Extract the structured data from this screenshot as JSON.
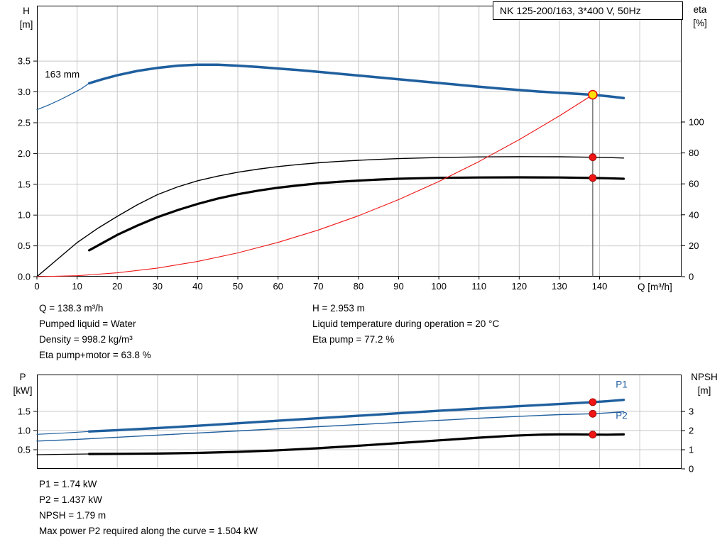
{
  "title": "NK 125-200/163, 3*400 V, 50Hz",
  "axes": {
    "top_left_unit": [
      "H",
      "[m]"
    ],
    "top_right_unit": [
      "eta",
      "[%]"
    ],
    "x_unit": "Q [m³/h]",
    "bottom_left_unit": [
      "P",
      "[kW]"
    ],
    "bottom_right_unit": [
      "NPSH",
      "[m]"
    ]
  },
  "info_top_left": [
    "Q = 138.3 m³/h",
    "Pumped liquid = Water",
    "Density = 998.2 kg/m³",
    "Eta pump+motor = 63.8 %"
  ],
  "info_top_right": [
    "H = 2.953 m",
    "Liquid temperature during operation = 20 °C",
    "Eta pump = 77.2 %"
  ],
  "info_bottom": [
    "P1 = 1.74 kW",
    "P2 = 1.437 kW",
    "NPSH = 1.79 m",
    "Max power P2 required along the curve = 1.504 kW"
  ],
  "colors": {
    "curve_blue": "#1f5f9e",
    "curve_black": "#000000",
    "curve_red": "#ee1515",
    "grid": "#c8c8c8",
    "duty_fill": "#ffe10a",
    "duty_ring": "#e01010",
    "dot": "#ee1515",
    "dot_ring": "#990000"
  },
  "chart_data": [
    {
      "type": "line",
      "title": "Pump curve: head and efficiency vs flow",
      "xlabel": "Q [m³/h]",
      "ylabel": "H [m]",
      "y2label": "eta [%]",
      "xlim": [
        0,
        160.4
      ],
      "ylim": [
        0,
        4.4
      ],
      "y2lim": [
        0,
        175.2
      ],
      "grid": true,
      "xticks": [
        0,
        10,
        20,
        30,
        40,
        50,
        60,
        70,
        80,
        90,
        100,
        110,
        120,
        130,
        140,
        150
      ],
      "xtick_labels": [
        "0",
        "10",
        "20",
        "30",
        "40",
        "50",
        "60",
        "70",
        "80",
        "90",
        "100",
        "110",
        "120",
        "130",
        "140",
        ""
      ],
      "yticks": [
        0,
        0.5,
        1,
        1.5,
        2,
        2.5,
        3,
        3.5
      ],
      "ytick_labels": [
        "0.0",
        "0.5",
        "1.0",
        "1.5",
        "2.0",
        "2.5",
        "3.0",
        "3.5"
      ],
      "y2ticks": [
        0,
        20,
        40,
        60,
        80,
        100
      ],
      "series": [
        {
          "name": "head-extension",
          "axis": "y",
          "color": "#1f5f9e",
          "width": 1.2,
          "points": [
            [
              0,
              2.71
            ],
            [
              3,
              2.79
            ],
            [
              6,
              2.88
            ],
            [
              9,
              2.98
            ],
            [
              11,
              3.05
            ],
            [
              13,
              3.14
            ]
          ]
        },
        {
          "name": "head-163mm",
          "axis": "y",
          "color": "#1f5f9e",
          "width": 3.5,
          "points": [
            [
              13,
              3.14
            ],
            [
              16,
              3.2
            ],
            [
              20,
              3.27
            ],
            [
              25,
              3.34
            ],
            [
              30,
              3.39
            ],
            [
              35,
              3.425
            ],
            [
              40,
              3.44
            ],
            [
              45,
              3.44
            ],
            [
              50,
              3.425
            ],
            [
              55,
              3.405
            ],
            [
              60,
              3.38
            ],
            [
              65,
              3.355
            ],
            [
              70,
              3.325
            ],
            [
              75,
              3.295
            ],
            [
              80,
              3.265
            ],
            [
              85,
              3.235
            ],
            [
              90,
              3.205
            ],
            [
              95,
              3.175
            ],
            [
              100,
              3.145
            ],
            [
              105,
              3.115
            ],
            [
              110,
              3.085
            ],
            [
              115,
              3.055
            ],
            [
              120,
              3.03
            ],
            [
              125,
              3.005
            ],
            [
              130,
              2.985
            ],
            [
              134,
              2.97
            ],
            [
              138.3,
              2.953
            ],
            [
              142,
              2.93
            ],
            [
              146,
              2.9
            ]
          ]
        },
        {
          "name": "eta-pump",
          "axis": "y2",
          "color": "#000000",
          "width": 1.4,
          "points": [
            [
              0,
              0
            ],
            [
              5,
              11
            ],
            [
              10,
              22
            ],
            [
              15,
              31
            ],
            [
              20,
              39
            ],
            [
              25,
              46.5
            ],
            [
              30,
              53
            ],
            [
              35,
              58
            ],
            [
              40,
              62
            ],
            [
              45,
              65
            ],
            [
              50,
              67.5
            ],
            [
              55,
              69.5
            ],
            [
              60,
              71.2
            ],
            [
              65,
              72.5
            ],
            [
              70,
              73.6
            ],
            [
              75,
              74.5
            ],
            [
              80,
              75.2
            ],
            [
              85,
              75.8
            ],
            [
              90,
              76.3
            ],
            [
              95,
              76.7
            ],
            [
              100,
              77
            ],
            [
              110,
              77.4
            ],
            [
              120,
              77.6
            ],
            [
              130,
              77.5
            ],
            [
              138.3,
              77.2
            ],
            [
              142,
              77
            ],
            [
              146,
              76.7
            ]
          ]
        },
        {
          "name": "eta-pump-motor",
          "axis": "y2",
          "color": "#000000",
          "width": 3.2,
          "points": [
            [
              13,
              17
            ],
            [
              20,
              27
            ],
            [
              25,
              33
            ],
            [
              30,
              38.5
            ],
            [
              35,
              43
            ],
            [
              40,
              47
            ],
            [
              45,
              50.5
            ],
            [
              50,
              53.3
            ],
            [
              55,
              55.6
            ],
            [
              60,
              57.5
            ],
            [
              65,
              59
            ],
            [
              70,
              60.3
            ],
            [
              75,
              61.3
            ],
            [
              80,
              62.1
            ],
            [
              85,
              62.8
            ],
            [
              90,
              63.3
            ],
            [
              95,
              63.6
            ],
            [
              100,
              63.9
            ],
            [
              110,
              64.1
            ],
            [
              120,
              64.2
            ],
            [
              130,
              64.1
            ],
            [
              138.3,
              63.8
            ],
            [
              142,
              63.6
            ],
            [
              146,
              63.3
            ]
          ]
        },
        {
          "name": "system-curve",
          "axis": "y",
          "color": "#ee1515",
          "width": 1.1,
          "points": [
            [
              0,
              0
            ],
            [
              10,
              0.015
            ],
            [
              20,
              0.062
            ],
            [
              30,
              0.139
            ],
            [
              40,
              0.247
            ],
            [
              50,
              0.386
            ],
            [
              60,
              0.556
            ],
            [
              70,
              0.757
            ],
            [
              80,
              0.988
            ],
            [
              90,
              1.251
            ],
            [
              100,
              1.545
            ],
            [
              110,
              1.869
            ],
            [
              120,
              2.224
            ],
            [
              130,
              2.61
            ],
            [
              138.3,
              2.953
            ]
          ]
        }
      ],
      "labels": [
        {
          "text": "163 mm",
          "x": 2,
          "y": 3.23,
          "axis": "y",
          "color": "#000000"
        }
      ],
      "duty_line": {
        "x": 138.3,
        "y": 2.953
      },
      "markers": [
        {
          "x": 138.3,
          "y": 2.953,
          "axis": "y",
          "type": "duty"
        },
        {
          "x": 138.3,
          "y": 77.2,
          "axis": "y2",
          "type": "dot"
        },
        {
          "x": 138.3,
          "y": 63.8,
          "axis": "y2",
          "type": "dot"
        }
      ]
    },
    {
      "type": "line",
      "title": "Power and NPSH vs flow",
      "xlabel": "Q [m³/h]",
      "ylabel": "P [kW]",
      "y2label": "NPSH [m]",
      "xlim": [
        0,
        160.4
      ],
      "ylim": [
        0,
        2.46
      ],
      "y2lim": [
        0,
        4.93
      ],
      "grid": true,
      "show_xtick_labels": false,
      "xticks": [
        0,
        10,
        20,
        30,
        40,
        50,
        60,
        70,
        80,
        90,
        100,
        110,
        120,
        130,
        140,
        150
      ],
      "yticks": [
        0.5,
        1,
        1.5
      ],
      "ytick_labels": [
        "0.5",
        "1.0",
        "1.5"
      ],
      "y2ticks": [
        0,
        1,
        2,
        3
      ],
      "series": [
        {
          "name": "p1-extension",
          "axis": "y",
          "color": "#1f5f9e",
          "width": 1.2,
          "points": [
            [
              0,
              0.9
            ],
            [
              6,
              0.93
            ],
            [
              13,
              0.975
            ]
          ]
        },
        {
          "name": "p1",
          "axis": "y",
          "color": "#1f5f9e",
          "width": 3.4,
          "points": [
            [
              13,
              0.975
            ],
            [
              20,
              1.01
            ],
            [
              30,
              1.065
            ],
            [
              40,
              1.125
            ],
            [
              50,
              1.19
            ],
            [
              60,
              1.255
            ],
            [
              70,
              1.32
            ],
            [
              80,
              1.385
            ],
            [
              90,
              1.45
            ],
            [
              100,
              1.515
            ],
            [
              110,
              1.575
            ],
            [
              120,
              1.635
            ],
            [
              130,
              1.69
            ],
            [
              138.3,
              1.74
            ],
            [
              142,
              1.765
            ],
            [
              146,
              1.8
            ]
          ]
        },
        {
          "name": "p2",
          "axis": "y",
          "color": "#1f5f9e",
          "width": 1.4,
          "points": [
            [
              0,
              0.725
            ],
            [
              10,
              0.77
            ],
            [
              20,
              0.825
            ],
            [
              30,
              0.88
            ],
            [
              40,
              0.935
            ],
            [
              50,
              0.99
            ],
            [
              60,
              1.045
            ],
            [
              70,
              1.1
            ],
            [
              80,
              1.155
            ],
            [
              90,
              1.21
            ],
            [
              100,
              1.265
            ],
            [
              110,
              1.32
            ],
            [
              120,
              1.37
            ],
            [
              130,
              1.415
            ],
            [
              138.3,
              1.437
            ],
            [
              142,
              1.46
            ],
            [
              146,
              1.49
            ]
          ]
        },
        {
          "name": "npsh-extension",
          "axis": "y2",
          "color": "#000000",
          "width": 1.2,
          "points": [
            [
              0,
              0.74
            ],
            [
              6,
              0.76
            ],
            [
              13,
              0.78
            ]
          ]
        },
        {
          "name": "npsh",
          "axis": "y2",
          "color": "#000000",
          "width": 3.2,
          "points": [
            [
              13,
              0.78
            ],
            [
              20,
              0.785
            ],
            [
              30,
              0.8
            ],
            [
              40,
              0.835
            ],
            [
              50,
              0.89
            ],
            [
              60,
              0.97
            ],
            [
              70,
              1.08
            ],
            [
              80,
              1.21
            ],
            [
              90,
              1.35
            ],
            [
              100,
              1.49
            ],
            [
              110,
              1.63
            ],
            [
              118,
              1.73
            ],
            [
              125,
              1.785
            ],
            [
              130,
              1.8
            ],
            [
              134,
              1.8
            ],
            [
              138.3,
              1.79
            ],
            [
              142,
              1.785
            ],
            [
              146,
              1.8
            ]
          ]
        }
      ],
      "labels": [
        {
          "text": "P1",
          "x": 144,
          "y": 2.12,
          "axis": "y",
          "color": "#1f5f9e"
        },
        {
          "text": "P2",
          "x": 144,
          "y": 1.3,
          "axis": "y",
          "color": "#1f5f9e"
        }
      ],
      "markers": [
        {
          "x": 138.3,
          "y": 1.74,
          "axis": "y",
          "type": "dot"
        },
        {
          "x": 138.3,
          "y": 1.437,
          "axis": "y",
          "type": "dot"
        },
        {
          "x": 138.3,
          "y": 1.79,
          "axis": "y2",
          "type": "dot"
        }
      ]
    }
  ]
}
